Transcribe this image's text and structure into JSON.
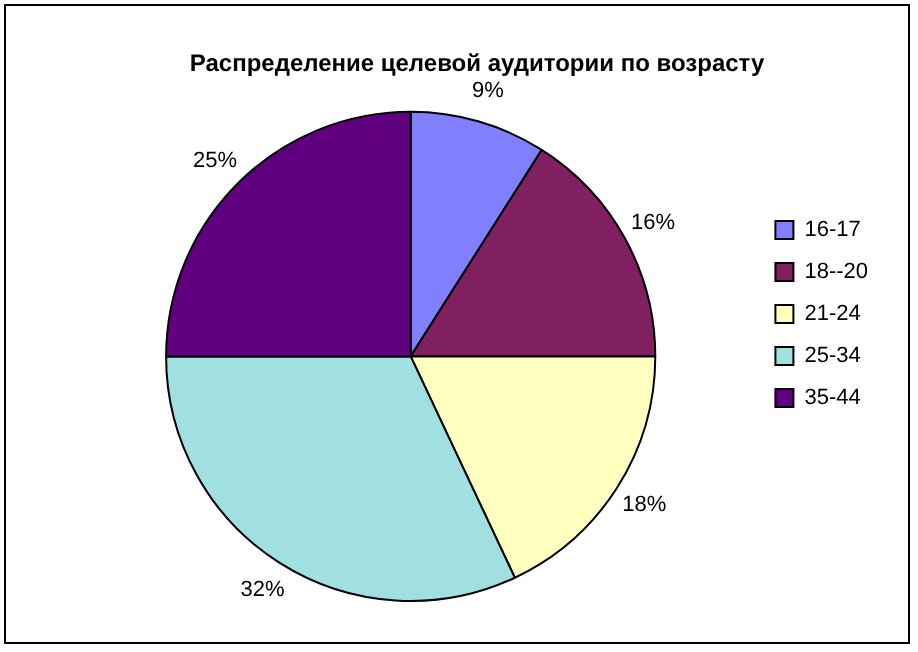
{
  "chart_data": {
    "type": "pie",
    "title": "Распределение целевой аудитории по возрасту",
    "categories": [
      "16-17",
      "18--20",
      "21-24",
      "25-34",
      "35-44"
    ],
    "values": [
      9,
      16,
      18,
      32,
      25
    ],
    "value_labels": [
      "9%",
      "16%",
      "18%",
      "32%",
      "25%"
    ],
    "colors": [
      "#8080ff",
      "#802060",
      "#ffffc0",
      "#a0e0e0",
      "#600080"
    ],
    "legend": "right"
  }
}
